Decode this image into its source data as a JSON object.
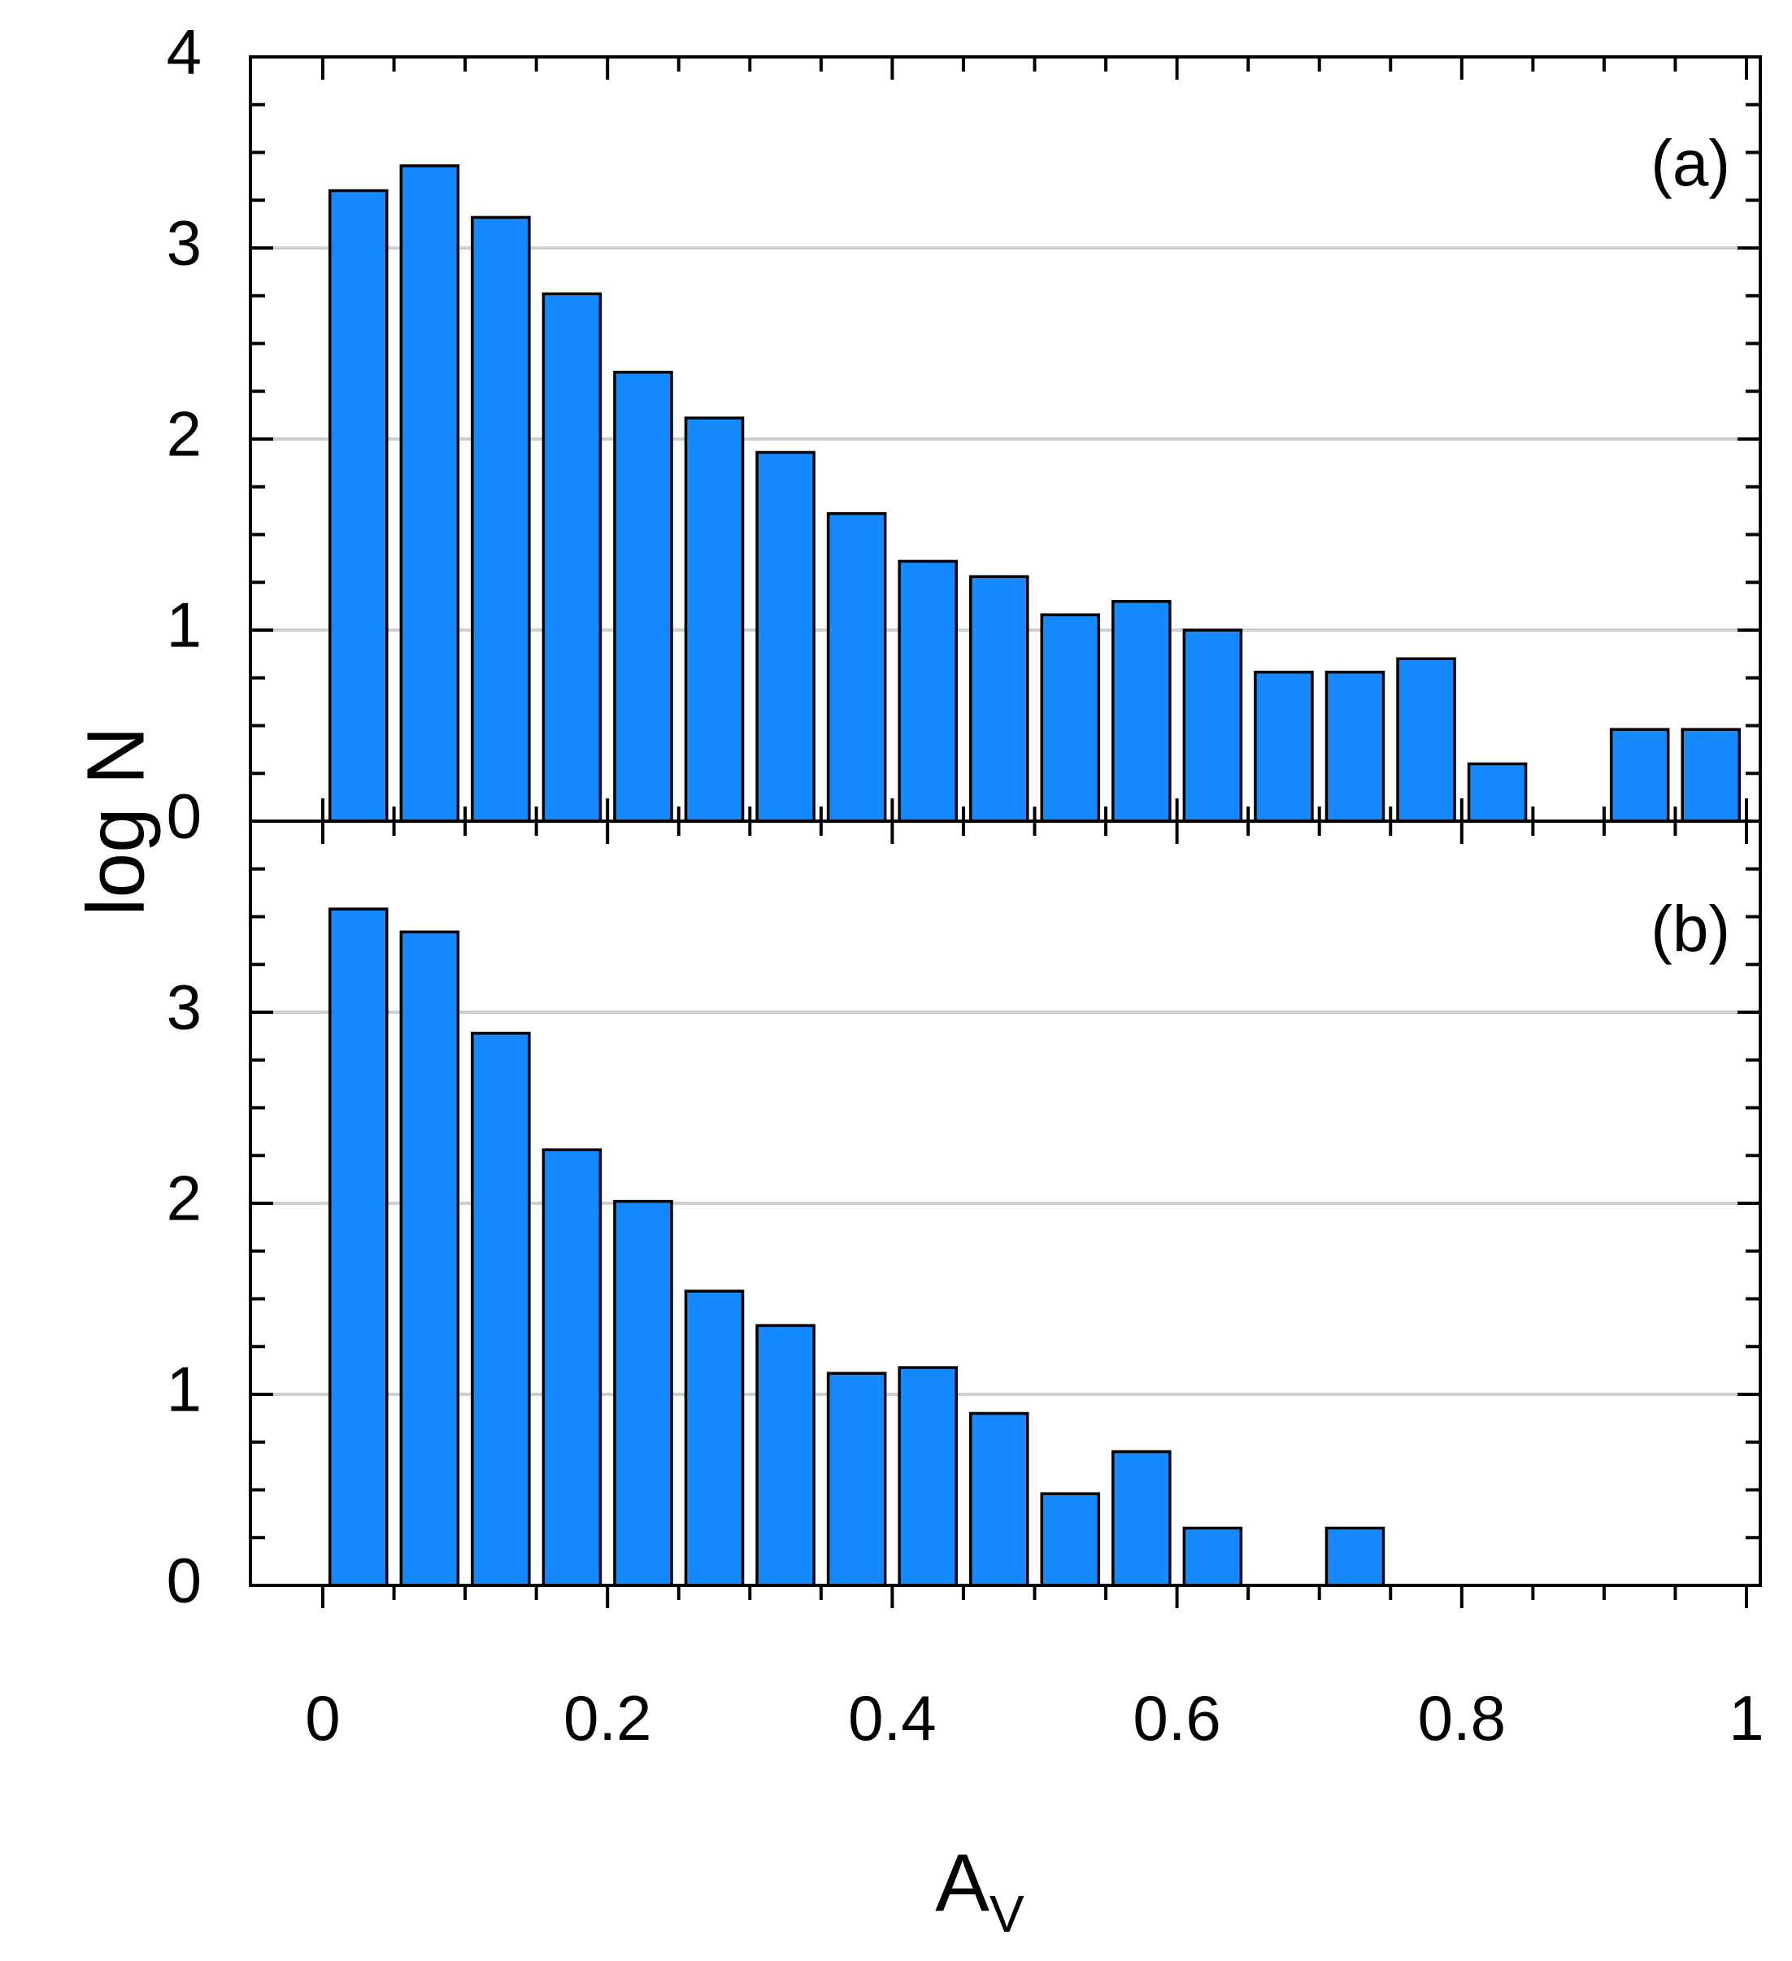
{
  "chart_data": [
    {
      "type": "bar",
      "panel_label": "(a)",
      "x_bin_centers": [
        0.025,
        0.075,
        0.125,
        0.175,
        0.225,
        0.275,
        0.325,
        0.375,
        0.425,
        0.475,
        0.525,
        0.575,
        0.625,
        0.675,
        0.725,
        0.775,
        0.825,
        0.875,
        0.925,
        0.975
      ],
      "bin_width": 0.05,
      "values": [
        3.3,
        3.43,
        3.16,
        2.76,
        2.35,
        2.11,
        1.93,
        1.61,
        1.36,
        1.28,
        1.08,
        1.15,
        1.0,
        0.78,
        0.78,
        0.85,
        0.3,
        0,
        0.48,
        0.48
      ],
      "xlim": [
        -0.05,
        1.0
      ],
      "ylim": [
        0,
        4
      ],
      "yticks": [
        "0",
        "1",
        "2",
        "3",
        "4"
      ],
      "ygrid": [
        1,
        2,
        3
      ],
      "color": "#1589FF",
      "ylabel": "log N"
    },
    {
      "type": "bar",
      "panel_label": "(b)",
      "x_bin_centers": [
        0.025,
        0.075,
        0.125,
        0.175,
        0.225,
        0.275,
        0.325,
        0.375,
        0.425,
        0.475,
        0.525,
        0.575,
        0.625,
        0.675,
        0.725,
        0.775,
        0.825,
        0.875,
        0.925,
        0.975
      ],
      "bin_width": 0.05,
      "values": [
        3.54,
        3.42,
        2.89,
        2.28,
        2.01,
        1.54,
        1.36,
        1.11,
        1.14,
        0.9,
        0.48,
        0.7,
        0.3,
        0,
        0.3,
        0,
        0,
        0,
        0,
        0
      ],
      "xlim": [
        -0.05,
        1.0
      ],
      "ylim": [
        0,
        4
      ],
      "yticks": [
        "0",
        "1",
        "2",
        "3"
      ],
      "ygrid": [
        1,
        2,
        3
      ],
      "color": "#1589FF",
      "ylabel": "log N"
    }
  ],
  "x_axis": {
    "label_main": "A",
    "label_sub": "V",
    "ticks": [
      0,
      0.2,
      0.4,
      0.6,
      0.8,
      1
    ],
    "tick_labels": [
      "0",
      "0.2",
      "0.4",
      "0.6",
      "0.8",
      "1"
    ]
  },
  "y_axis_title": "log N"
}
